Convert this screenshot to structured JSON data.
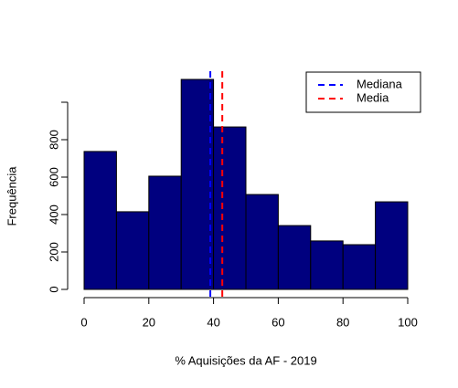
{
  "chart_data": {
    "type": "histogram",
    "xlabel": "% Aquisições da AF - 2019",
    "ylabel": "Frequência",
    "bins": [
      0,
      10,
      20,
      30,
      40,
      50,
      60,
      70,
      80,
      90,
      100
    ],
    "values": [
      737,
      415,
      605,
      1122,
      868,
      507,
      341,
      259,
      239,
      468
    ],
    "color": "#00007f",
    "xlim": [
      0,
      100
    ],
    "xticks": [
      0,
      20,
      40,
      60,
      80,
      100
    ],
    "ylim": [
      0,
      1200
    ],
    "yticks": [
      0,
      200,
      400,
      600,
      800,
      {
        "value": 1000,
        "label": null
      }
    ],
    "vlines": [
      {
        "name": "Mediana",
        "value": 39,
        "color": "#0000ff"
      },
      {
        "name": "Media",
        "value": 42.7,
        "color": "#ff0000"
      }
    ],
    "legend": "top-right"
  }
}
